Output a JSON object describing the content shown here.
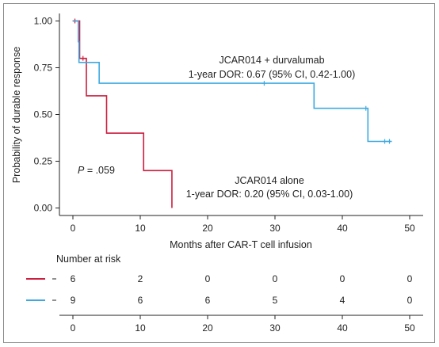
{
  "chart_data": {
    "type": "line",
    "subtype": "kaplan-meier",
    "xlabel": "Months after CAR-T cell infusion",
    "ylabel": "Probability of durable response",
    "xlim": [
      -2,
      52
    ],
    "ylim": [
      -0.04,
      1.04
    ],
    "xticks": [
      "0",
      "10",
      "20",
      "30",
      "40",
      "50"
    ],
    "yticks": [
      "0.00",
      "0.25",
      "0.50",
      "0.75",
      "1.00"
    ],
    "series": [
      {
        "color": "#cc1e3e",
        "steps": [
          [
            0,
            1.0
          ],
          [
            1.0,
            1.0
          ],
          [
            1.0,
            0.8
          ],
          [
            2.0,
            0.8
          ],
          [
            2.0,
            0.6
          ],
          [
            5.0,
            0.6
          ],
          [
            5.0,
            0.4
          ],
          [
            10.5,
            0.4
          ],
          [
            10.5,
            0.2
          ],
          [
            14.7,
            0.2
          ],
          [
            14.7,
            0.0
          ]
        ],
        "censored": [
          [
            0.3,
            1.0
          ],
          [
            1.5,
            0.8
          ]
        ]
      },
      {
        "color": "#3ea9e0",
        "steps": [
          [
            0,
            1.0
          ],
          [
            0.8,
            1.0
          ],
          [
            0.8,
            0.889
          ],
          [
            0.9,
            0.889
          ],
          [
            0.9,
            0.778
          ],
          [
            3.9,
            0.778
          ],
          [
            3.9,
            0.667
          ],
          [
            35.8,
            0.667
          ],
          [
            35.8,
            0.533
          ],
          [
            43.8,
            0.533
          ],
          [
            43.8,
            0.356
          ],
          [
            47.3,
            0.356
          ]
        ],
        "censored": [
          [
            28.4,
            0.667
          ],
          [
            43.5,
            0.533
          ],
          [
            46.3,
            0.356
          ],
          [
            47.0,
            0.356
          ]
        ]
      }
    ],
    "annotations": {
      "combo_name": "JCAR014 + durvalumab",
      "combo_dor": "1-year DOR: 0.67 (95% CI, 0.42-1.00)",
      "alone_name": "JCAR014 alone",
      "alone_dor": "1-year DOR: 0.20 (95% CI, 0.03-1.00)",
      "p_label": "P",
      "p_value": " = .059"
    },
    "risk_table": {
      "title": "Number at risk",
      "times": [
        "0",
        "10",
        "20",
        "30",
        "40",
        "50"
      ],
      "rows": [
        {
          "color": "#cc1e3e",
          "values": [
            "6",
            "2",
            "0",
            "0",
            "0",
            "0"
          ]
        },
        {
          "color": "#3ea9e0",
          "values": [
            "9",
            "6",
            "6",
            "5",
            "4",
            "0"
          ]
        }
      ]
    }
  }
}
